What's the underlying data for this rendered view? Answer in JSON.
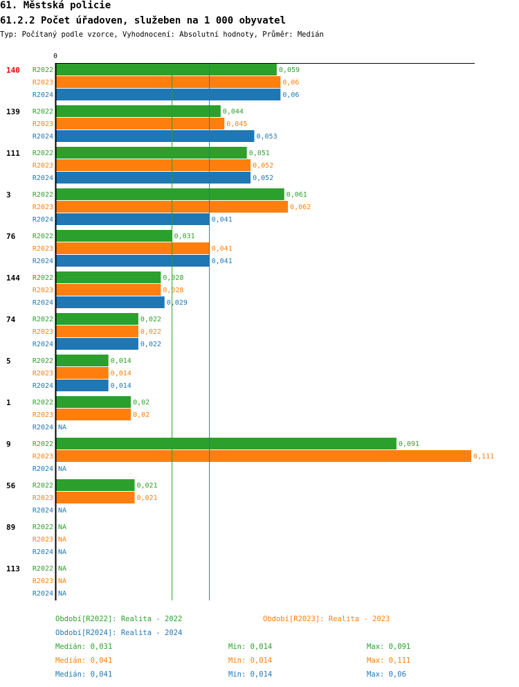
{
  "header": {
    "title": "61. Městská policie",
    "subtitle": "61.2.2 Počet úřadoven, služeben na 1 000 obyvatel",
    "meta": "Typ: Počítaný podle vzorce, Vyhodnocení: Absolutní hodnoty, Průměr: Medián"
  },
  "colors": {
    "R2022": "#2ca02c",
    "R2023": "#ff7f0e",
    "R2024": "#1f77b4",
    "highlight": "#ee0000"
  },
  "chart_data": {
    "type": "bar",
    "orientation": "horizontal",
    "axis_zero_label": "0",
    "xlim": [
      0,
      0.111
    ],
    "na_label": "NA",
    "highlight_category": "140",
    "categories": [
      "140",
      "139",
      "111",
      "3",
      "76",
      "144",
      "74",
      "5",
      "1",
      "9",
      "56",
      "89",
      "113"
    ],
    "series": [
      {
        "name": "R2022",
        "values": [
          0.059,
          0.044,
          0.051,
          0.061,
          0.031,
          0.028,
          0.022,
          0.014,
          0.02,
          0.091,
          0.021,
          null,
          null
        ]
      },
      {
        "name": "R2023",
        "values": [
          0.06,
          0.045,
          0.052,
          0.062,
          0.041,
          0.028,
          0.022,
          0.014,
          0.02,
          0.111,
          0.021,
          null,
          null
        ]
      },
      {
        "name": "R2024",
        "values": [
          0.06,
          0.053,
          0.052,
          0.041,
          0.041,
          0.029,
          0.022,
          0.014,
          null,
          null,
          null,
          null,
          null
        ]
      }
    ],
    "median_lines": {
      "R2022": 0.031,
      "R2024": 0.041
    }
  },
  "footer": {
    "legend": [
      {
        "text": "Období[R2022]: Realita - 2022"
      },
      {
        "text": "Období[R2023]: Realita - 2023"
      },
      {
        "text": "Období[R2024]: Realita - 2024"
      }
    ],
    "stats": [
      {
        "median": "Medián: 0,031",
        "min": "Min: 0,014",
        "max": "Max: 0,091"
      },
      {
        "median": "Medián: 0,041",
        "min": "Min: 0,014",
        "max": "Max: 0,111"
      },
      {
        "median": "Medián: 0,041",
        "min": "Min: 0,014",
        "max": "Max: 0,06"
      }
    ]
  }
}
